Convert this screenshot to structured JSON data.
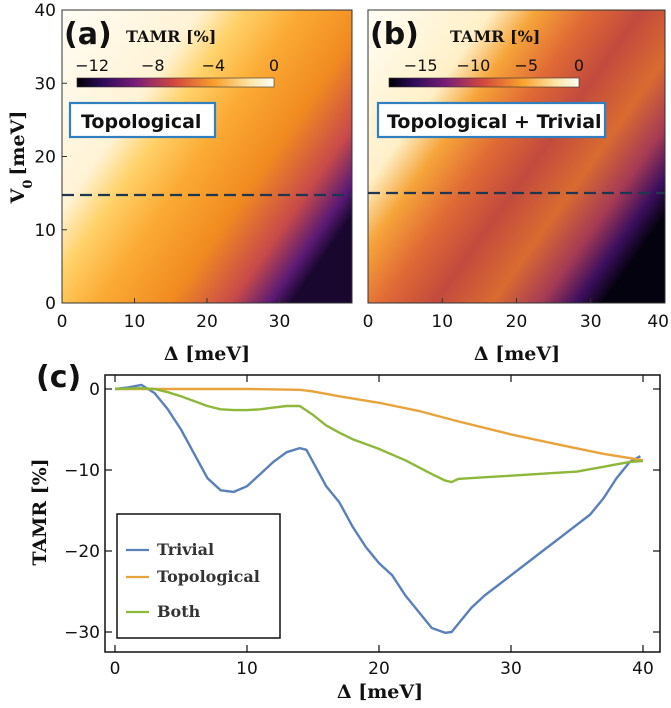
{
  "chart_data": [
    {
      "panel": "(a)",
      "type": "heatmap",
      "label_box": "Topological",
      "xlabel": "Δ [meV]",
      "ylabel": "V",
      "ylabel_sub": "0",
      "ylabel_unit": "[meV]",
      "x_ticks": [
        "0",
        "10",
        "20",
        "30"
      ],
      "y_ticks": [
        "0",
        "10",
        "20",
        "30",
        "40"
      ],
      "xlim": [
        0,
        40
      ],
      "ylim": [
        0,
        40
      ],
      "dashed_line_y": 15,
      "colorbar": {
        "title": "TAMR [%]",
        "ticks": [
          "−12",
          "−8",
          "−4",
          "0"
        ],
        "range": [
          -13,
          0
        ]
      }
    },
    {
      "panel": "(b)",
      "type": "heatmap",
      "label_box": "Topological + Trivial",
      "xlabel": "Δ [meV]",
      "x_ticks": [
        "0",
        "10",
        "20",
        "30",
        "40"
      ],
      "xlim": [
        0,
        40
      ],
      "ylim": [
        0,
        40
      ],
      "dashed_line_y": 15,
      "colorbar": {
        "title": "TAMR [%]",
        "ticks": [
          "−15",
          "−10",
          "−5",
          "0"
        ],
        "range": [
          -18,
          0
        ]
      }
    },
    {
      "panel": "(c)",
      "type": "line",
      "xlabel": "Δ [meV]",
      "ylabel": "TAMR [%]",
      "xlim": [
        0,
        40
      ],
      "ylim": [
        -31,
        1
      ],
      "x_ticks": [
        "0",
        "10",
        "20",
        "30",
        "40"
      ],
      "y_ticks": [
        "0",
        "−10",
        "−20",
        "−30"
      ],
      "series": [
        {
          "name": "Trivial",
          "color": "#5b7fba",
          "points": [
            [
              0,
              0
            ],
            [
              1,
              0.2
            ],
            [
              2,
              0.5
            ],
            [
              3,
              -0.5
            ],
            [
              4,
              -2.5
            ],
            [
              5,
              -5
            ],
            [
              6,
              -8
            ],
            [
              7,
              -11
            ],
            [
              8,
              -12.5
            ],
            [
              9,
              -12.7
            ],
            [
              10,
              -12
            ],
            [
              11,
              -10.5
            ],
            [
              12,
              -9
            ],
            [
              13,
              -7.8
            ],
            [
              14,
              -7.3
            ],
            [
              14.5,
              -7.5
            ],
            [
              15,
              -9
            ],
            [
              16,
              -12
            ],
            [
              17,
              -14
            ],
            [
              18,
              -17
            ],
            [
              19,
              -19.5
            ],
            [
              20,
              -21.5
            ],
            [
              21,
              -23
            ],
            [
              22,
              -25.5
            ],
            [
              23,
              -27.5
            ],
            [
              24,
              -29.5
            ],
            [
              25,
              -30.1
            ],
            [
              25.5,
              -30
            ],
            [
              26,
              -29
            ],
            [
              27,
              -27
            ],
            [
              28,
              -25.5
            ],
            [
              30,
              -23
            ],
            [
              32,
              -20.5
            ],
            [
              34,
              -18
            ],
            [
              36,
              -15.5
            ],
            [
              37,
              -13.5
            ],
            [
              38,
              -11
            ],
            [
              39,
              -9
            ],
            [
              39.8,
              -8.3
            ]
          ]
        },
        {
          "name": "Topological",
          "color": "#e8a33d",
          "points": [
            [
              0,
              0
            ],
            [
              5,
              0
            ],
            [
              10,
              0
            ],
            [
              14,
              -0.1
            ],
            [
              15,
              -0.3
            ],
            [
              17,
              -0.9
            ],
            [
              20,
              -1.7
            ],
            [
              23,
              -2.7
            ],
            [
              26,
              -4
            ],
            [
              30,
              -5.6
            ],
            [
              34,
              -7
            ],
            [
              37,
              -8
            ],
            [
              40,
              -8.8
            ]
          ]
        },
        {
          "name": "Both",
          "color": "#8db83a",
          "points": [
            [
              0,
              0
            ],
            [
              2,
              0.1
            ],
            [
              3,
              0
            ],
            [
              4,
              -0.4
            ],
            [
              5,
              -0.9
            ],
            [
              6,
              -1.5
            ],
            [
              7,
              -2.1
            ],
            [
              8,
              -2.5
            ],
            [
              9,
              -2.6
            ],
            [
              10,
              -2.6
            ],
            [
              11,
              -2.5
            ],
            [
              12,
              -2.3
            ],
            [
              13,
              -2.1
            ],
            [
              14,
              -2.1
            ],
            [
              15,
              -3.2
            ],
            [
              16,
              -4.5
            ],
            [
              17,
              -5.4
            ],
            [
              18,
              -6.2
            ],
            [
              20,
              -7.4
            ],
            [
              22,
              -8.8
            ],
            [
              24,
              -10.5
            ],
            [
              25,
              -11.3
            ],
            [
              25.5,
              -11.5
            ],
            [
              26,
              -11.1
            ],
            [
              27,
              -11
            ],
            [
              30,
              -10.7
            ],
            [
              33,
              -10.4
            ],
            [
              35,
              -10.2
            ],
            [
              36,
              -9.9
            ],
            [
              37,
              -9.6
            ],
            [
              38,
              -9.3
            ],
            [
              39,
              -9
            ],
            [
              40,
              -8.9
            ]
          ]
        }
      ],
      "legend": [
        "Trivial",
        "Topological",
        "Both"
      ],
      "legend_position": "bottom-left"
    }
  ]
}
